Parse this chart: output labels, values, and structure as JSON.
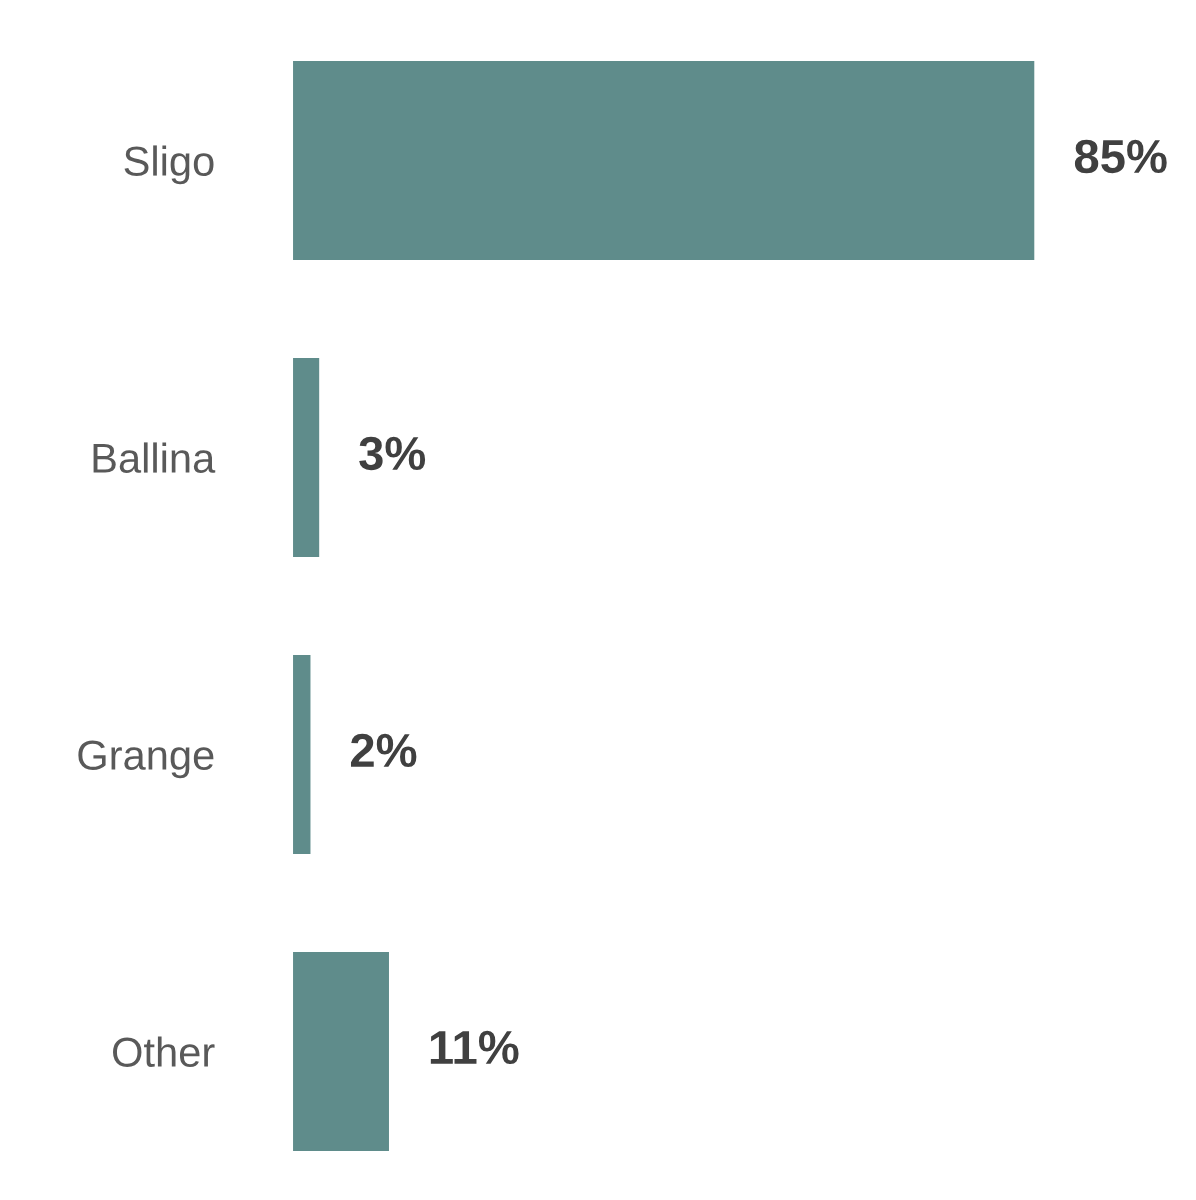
{
  "chart_data": {
    "type": "bar",
    "orientation": "horizontal",
    "categories": [
      "Sligo",
      "Ballina",
      "Grange",
      "Other"
    ],
    "values": [
      85,
      3,
      2,
      11
    ],
    "value_labels": [
      "85%",
      "3%",
      "2%",
      "11%"
    ],
    "color": "#5f8c8b",
    "grid": false,
    "legend": false,
    "tick_labels": "y"
  }
}
